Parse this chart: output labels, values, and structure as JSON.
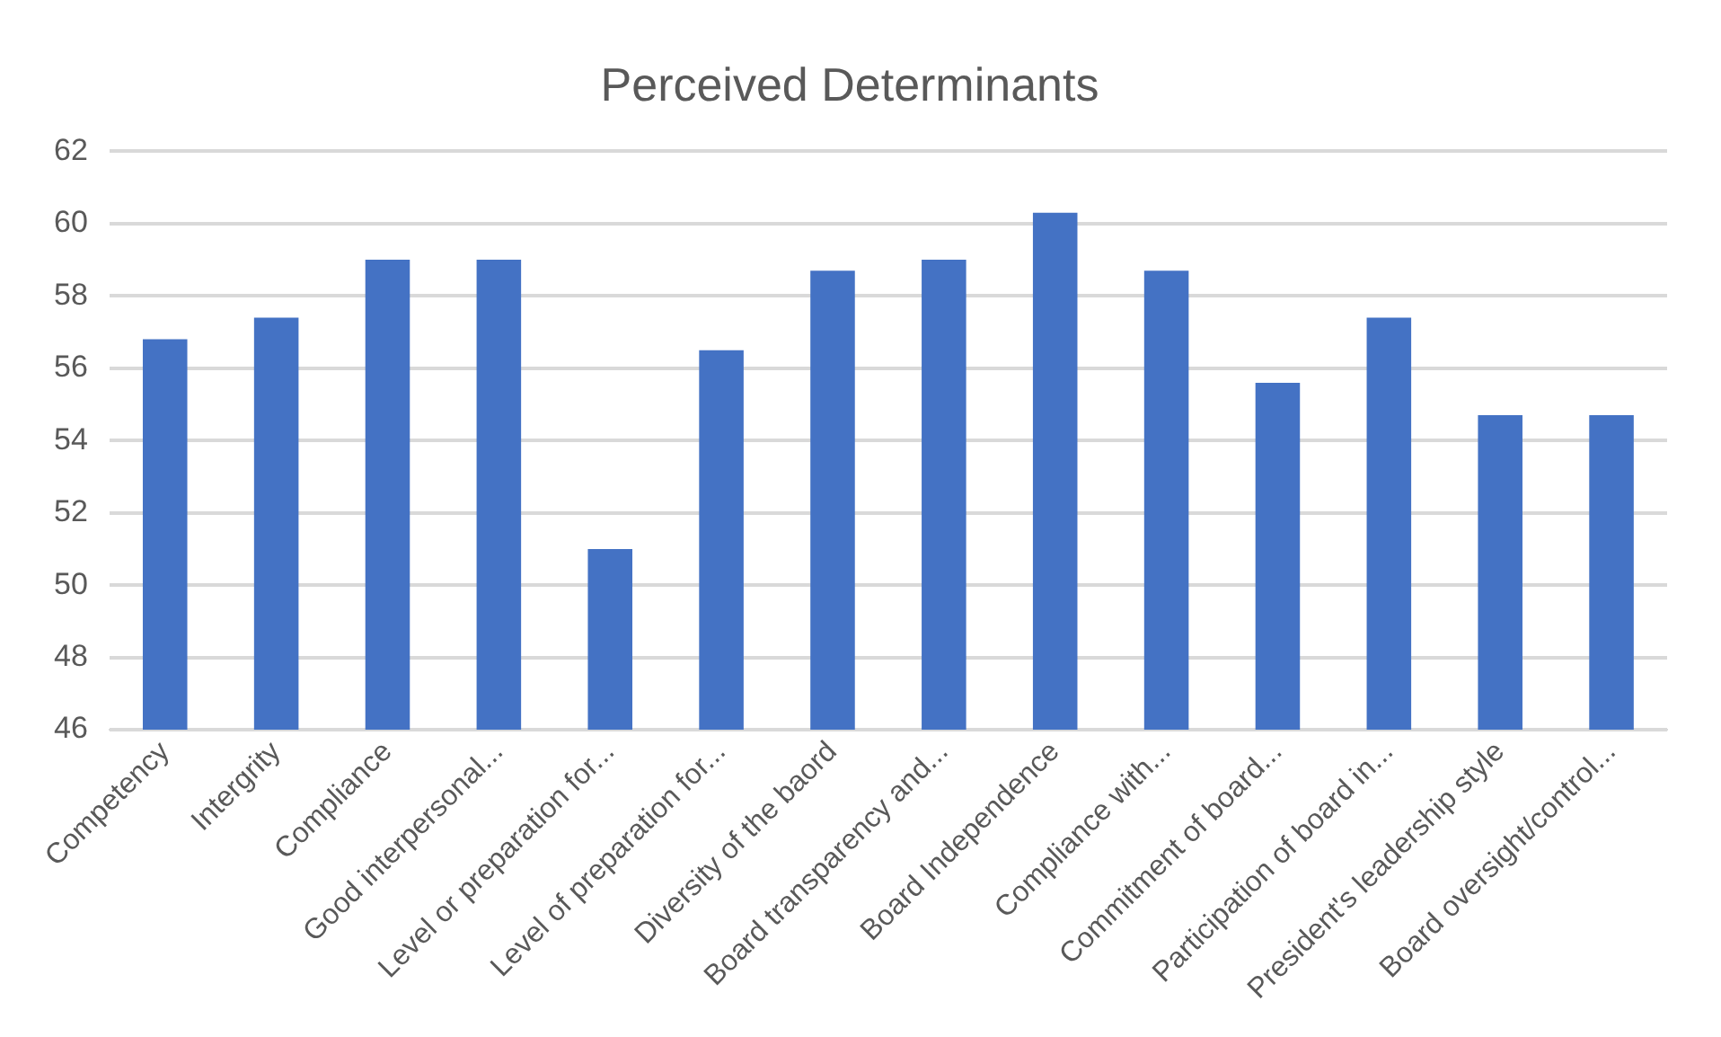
{
  "chart_data": {
    "type": "bar",
    "title": "Perceived Determinants",
    "categories": [
      "Competency",
      "Intergrity",
      "Compliance",
      "Good interpersonal...",
      "Level or preparation for...",
      "Level of preparation for...",
      "Diversity of the baord",
      "Board transparency and...",
      "Board Independence",
      "Compliance with...",
      "Commitment of board...",
      "Participation of board in...",
      "President's leadership style",
      "Board oversight/control..."
    ],
    "values": [
      56.8,
      57.4,
      59.0,
      59.0,
      51.0,
      56.5,
      58.7,
      59.0,
      60.3,
      58.7,
      55.6,
      57.4,
      54.7,
      54.7
    ],
    "color": "#4472c4",
    "ylim": [
      46,
      62
    ],
    "yticks": [
      46,
      48,
      50,
      52,
      54,
      56,
      58,
      60,
      62
    ],
    "grid": "y",
    "legend": false
  }
}
